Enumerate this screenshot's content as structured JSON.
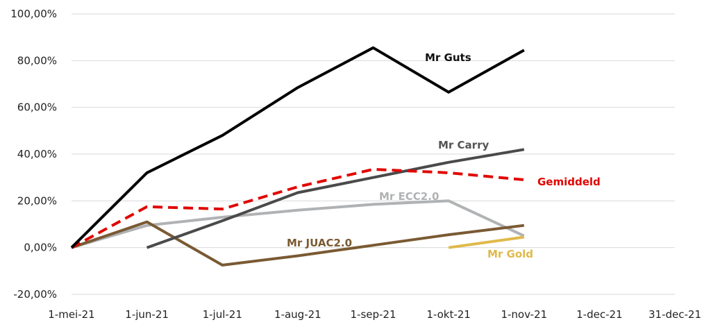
{
  "chart_data": {
    "type": "line",
    "title": "",
    "xlabel": "",
    "ylabel": "",
    "ylim": [
      -20,
      100
    ],
    "y_ticks": [
      -20,
      0,
      20,
      40,
      60,
      80,
      100
    ],
    "y_tick_labels": [
      "-20,00%",
      "0,00%",
      "20,00%",
      "40,00%",
      "60,00%",
      "80,00%",
      "100,00%"
    ],
    "categories": [
      "1-mei-21",
      "1-jun-21",
      "1-jul-21",
      "1-aug-21",
      "1-sep-21",
      "1-okt-21",
      "1-nov-21",
      "1-dec-21",
      "31-dec-21"
    ],
    "grid": "horizontal",
    "legend": "inline labels",
    "series": [
      {
        "name": "Mr Guts",
        "color": "#000000",
        "dashed": false,
        "values": [
          0,
          32,
          48,
          68.5,
          85.5,
          66.5,
          84.5,
          null,
          null
        ]
      },
      {
        "name": "Mr Carry",
        "color": "#4a4a4a",
        "dashed": false,
        "values": [
          null,
          0,
          11.5,
          23.5,
          30,
          36.5,
          42,
          null,
          null
        ]
      },
      {
        "name": "Gemiddeld",
        "color": "#e10600",
        "dashed": true,
        "values": [
          0,
          17.5,
          16.5,
          26,
          33.5,
          32,
          29,
          null,
          null
        ]
      },
      {
        "name": "Mr ECC2.0",
        "color": "#b0b2b4",
        "dashed": false,
        "values": [
          0,
          9.5,
          13,
          16,
          18.5,
          20,
          5,
          null,
          null
        ]
      },
      {
        "name": "Mr JUAC2.0",
        "color": "#7a5a33",
        "dashed": false,
        "values": [
          0,
          11,
          -7.5,
          -3.5,
          1,
          5.5,
          9.5,
          null,
          null
        ]
      },
      {
        "name": "Mr Gold",
        "color": "#e0b94a",
        "dashed": false,
        "values": [
          null,
          null,
          null,
          null,
          null,
          0,
          4.5,
          null,
          null
        ]
      }
    ]
  }
}
